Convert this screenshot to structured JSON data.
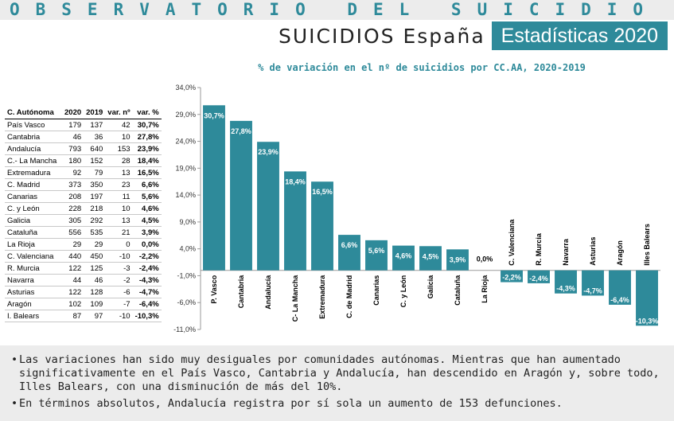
{
  "header": {
    "observatory": "OBSERVATORIO DEL SUICIDIO",
    "subtitle_left": "SUICIDIOS España",
    "subtitle_right": "Estadísticas 2020"
  },
  "table": {
    "headers": [
      "C. Autónoma",
      "2020",
      "2019",
      "var. nº",
      "var. %"
    ],
    "rows": [
      [
        "País Vasco",
        "179",
        "137",
        "42",
        "30,7%"
      ],
      [
        "Cantabria",
        "46",
        "36",
        "10",
        "27,8%"
      ],
      [
        "Andalucía",
        "793",
        "640",
        "153",
        "23,9%"
      ],
      [
        "C.- La Mancha",
        "180",
        "152",
        "28",
        "18,4%"
      ],
      [
        "Extremadura",
        "92",
        "79",
        "13",
        "16,5%"
      ],
      [
        "C. Madrid",
        "373",
        "350",
        "23",
        "6,6%"
      ],
      [
        "Canarias",
        "208",
        "197",
        "11",
        "5,6%"
      ],
      [
        "C. y León",
        "228",
        "218",
        "10",
        "4,6%"
      ],
      [
        "Galicia",
        "305",
        "292",
        "13",
        "4,5%"
      ],
      [
        "Cataluña",
        "556",
        "535",
        "21",
        "3,9%"
      ],
      [
        "La Rioja",
        "29",
        "29",
        "0",
        "0,0%"
      ],
      [
        "C. Valenciana",
        "440",
        "450",
        "-10",
        "-2,2%"
      ],
      [
        "R. Murcia",
        "122",
        "125",
        "-3",
        "-2,4%"
      ],
      [
        "Navarra",
        "44",
        "46",
        "-2",
        "-4,3%"
      ],
      [
        "Asturias",
        "122",
        "128",
        "-6",
        "-4,7%"
      ],
      [
        "Aragón",
        "102",
        "109",
        "-7",
        "-6,4%"
      ],
      [
        "I. Balears",
        "87",
        "97",
        "-10",
        "-10,3%"
      ]
    ]
  },
  "chart_data": {
    "type": "bar",
    "title": "% de variación en el nº de suicidios por CC.AA, 2020-2019",
    "categories": [
      "P. Vasco",
      "Cantabria",
      "Andalucía",
      "C- La Mancha",
      "Extremadura",
      "C. de Madrid",
      "Canarias",
      "C. y León",
      "Galicia",
      "Cataluña",
      "La Rioja",
      "C. Valenciana",
      "R. Murcia",
      "Navarra",
      "Asturias",
      "Aragón",
      "Illes Balears"
    ],
    "values": [
      30.7,
      27.8,
      23.9,
      18.4,
      16.5,
      6.6,
      5.6,
      4.6,
      4.5,
      3.9,
      0.0,
      -2.2,
      -2.4,
      -4.3,
      -4.7,
      -6.4,
      -10.3
    ],
    "value_labels": [
      "30,7%",
      "27,8%",
      "23,9%",
      "18,4%",
      "16,5%",
      "6,6%",
      "5,6%",
      "4,6%",
      "4,5%",
      "3,9%",
      "0,0%",
      "-2,2%",
      "-2,4%",
      "-4,3%",
      "-4,7%",
      "-6,4%",
      "-10,3%"
    ],
    "ylim": [
      -11,
      34
    ],
    "yticks": [
      34,
      29,
      24,
      19,
      14,
      9,
      4,
      -1,
      -6,
      -11
    ],
    "ytick_labels": [
      "34,0%",
      "29,0%",
      "24,0%",
      "19,0%",
      "14,0%",
      "9,0%",
      "4,0%",
      "-1,0%",
      "-6,0%",
      "-11,0%"
    ],
    "xlabel": "",
    "ylabel": "",
    "grid": false,
    "bar_color": "#2e8a9a"
  },
  "bullets": [
    "Las variaciones han sido muy desiguales por comunidades autónomas. Mientras que han aumentado significativamente en el País Vasco, Cantabria y Andalucía, han descendido en Aragón y, sobre todo, Illes Balears, con una disminución de más del 10%.",
    "En términos absolutos, Andalucía registra por sí sola un aumento de 153 defunciones."
  ]
}
